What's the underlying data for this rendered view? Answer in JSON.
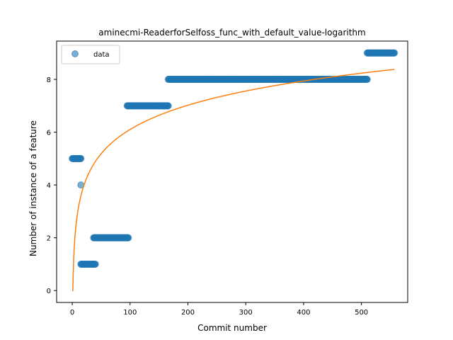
{
  "chart_data": {
    "type": "scatter",
    "title": "aminecmi-ReaderforSelfoss_func_with_default_value-logarithm",
    "xlabel": "Commit number",
    "ylabel": "Number of instance of a feature",
    "xlim": [
      -27,
      580
    ],
    "ylim": [
      -0.45,
      9.45
    ],
    "xticks": [
      0,
      100,
      200,
      300,
      400,
      500
    ],
    "yticks": [
      0,
      2,
      4,
      6,
      8
    ],
    "grid": false,
    "legend": {
      "position": "top-left",
      "entries": [
        "data"
      ]
    },
    "colors": {
      "data": "#1f77b4",
      "fit": "#ff7f0e"
    },
    "series": [
      {
        "name": "data",
        "kind": "scatter",
        "segments": [
          {
            "x_start": 0,
            "x_end": 15,
            "y": 5
          },
          {
            "x_start": 15,
            "x_end": 15,
            "y": 4
          },
          {
            "x_start": 15,
            "x_end": 40,
            "y": 1
          },
          {
            "x_start": 37,
            "x_end": 97,
            "y": 2
          },
          {
            "x_start": 95,
            "x_end": 166,
            "y": 7
          },
          {
            "x_start": 166,
            "x_end": 510,
            "y": 8
          },
          {
            "x_start": 510,
            "x_end": 557,
            "y": 9
          }
        ]
      },
      {
        "kind": "line",
        "function": "logarithmic fit",
        "a": 1.325,
        "b": 0,
        "x_start": 1,
        "x_end": 557
      }
    ]
  }
}
